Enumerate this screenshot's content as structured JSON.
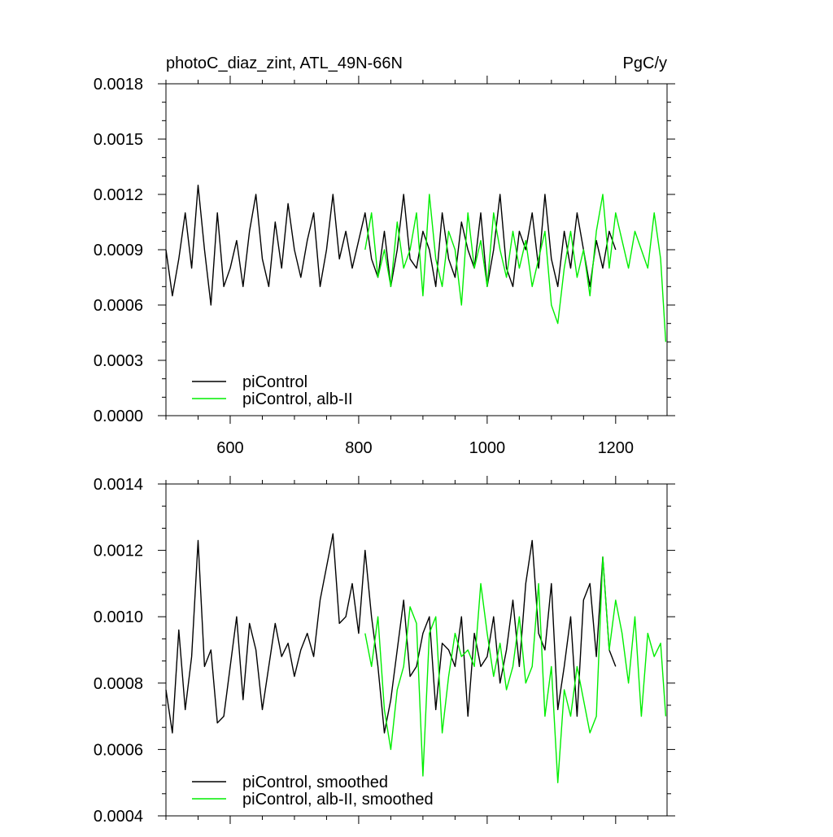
{
  "chart_data": [
    {
      "type": "line",
      "title": "photoC_diaz_zint, ATL_49N-66N",
      "units": "PgC/y",
      "xlim": [
        500,
        1280
      ],
      "ylim": [
        0,
        0.0018
      ],
      "x_ticks": [
        600,
        800,
        1000,
        1200
      ],
      "x_tick_labels": [
        "600",
        "800",
        "1000",
        "1200"
      ],
      "y_ticks": [
        0,
        0.0003,
        0.0006,
        0.0009,
        0.0012,
        0.0015,
        0.0018
      ],
      "y_tick_labels": [
        "0.0000",
        "0.0003",
        "0.0006",
        "0.0009",
        "0.0012",
        "0.0015",
        "0.0018"
      ],
      "grid": false,
      "legend": "bottom-left",
      "series": [
        {
          "name": "piControl",
          "color": "#000000",
          "x": [
            500,
            510,
            520,
            530,
            540,
            550,
            560,
            570,
            580,
            590,
            600,
            610,
            620,
            630,
            640,
            650,
            660,
            670,
            680,
            690,
            700,
            710,
            720,
            730,
            740,
            750,
            760,
            770,
            780,
            790,
            800,
            810,
            820,
            830,
            840,
            850,
            860,
            870,
            880,
            890,
            900,
            910,
            920,
            930,
            940,
            950,
            960,
            970,
            980,
            990,
            1000,
            1010,
            1020,
            1030,
            1040,
            1050,
            1060,
            1070,
            1080,
            1090,
            1100,
            1110,
            1120,
            1130,
            1140,
            1150,
            1160,
            1170,
            1180,
            1190,
            1200
          ],
          "values": [
            0.0009,
            0.00065,
            0.00085,
            0.0011,
            0.0008,
            0.00125,
            0.0009,
            0.0006,
            0.0011,
            0.0007,
            0.0008,
            0.00095,
            0.0007,
            0.001,
            0.0012,
            0.00085,
            0.0007,
            0.00105,
            0.0008,
            0.00115,
            0.0009,
            0.00075,
            0.00095,
            0.0011,
            0.0007,
            0.0009,
            0.0012,
            0.00085,
            0.001,
            0.0008,
            0.00095,
            0.0011,
            0.00085,
            0.00075,
            0.001,
            0.0007,
            0.0009,
            0.0012,
            0.00085,
            0.0008,
            0.001,
            0.0009,
            0.0007,
            0.0011,
            0.00085,
            0.00075,
            0.00105,
            0.0009,
            0.0008,
            0.0011,
            0.0007,
            0.0009,
            0.0012,
            0.0008,
            0.0007,
            0.001,
            0.0009,
            0.0011,
            0.0008,
            0.0012,
            0.00085,
            0.0007,
            0.001,
            0.0008,
            0.0011,
            0.0009,
            0.0007,
            0.00095,
            0.0008,
            0.001,
            0.0009
          ]
        },
        {
          "name": "piControl, alb-II",
          "color": "#00ee00",
          "x": [
            810,
            820,
            830,
            840,
            850,
            860,
            870,
            880,
            890,
            900,
            910,
            920,
            930,
            940,
            950,
            960,
            970,
            980,
            990,
            1000,
            1010,
            1020,
            1030,
            1040,
            1050,
            1060,
            1070,
            1080,
            1090,
            1100,
            1110,
            1120,
            1130,
            1140,
            1150,
            1160,
            1170,
            1180,
            1190,
            1200,
            1210,
            1220,
            1230,
            1240,
            1250,
            1260,
            1270,
            1278
          ],
          "values": [
            0.0009,
            0.0011,
            0.00075,
            0.0009,
            0.0007,
            0.00105,
            0.0008,
            0.0009,
            0.0011,
            0.00065,
            0.0012,
            0.00085,
            0.0007,
            0.001,
            0.0009,
            0.0006,
            0.0011,
            0.0008,
            0.00095,
            0.0007,
            0.0011,
            0.0009,
            0.00075,
            0.001,
            0.0008,
            0.00095,
            0.0007,
            0.00085,
            0.001,
            0.0006,
            0.0005,
            0.0008,
            0.001,
            0.00075,
            0.0009,
            0.00065,
            0.001,
            0.0012,
            0.0008,
            0.0011,
            0.00095,
            0.0008,
            0.001,
            0.0009,
            0.0008,
            0.0011,
            0.00085,
            0.0004
          ]
        }
      ]
    },
    {
      "type": "line",
      "xlim": [
        500,
        1280
      ],
      "ylim": [
        0.0004,
        0.0014
      ],
      "x_ticks": [
        600,
        800,
        1000,
        1200
      ],
      "y_ticks": [
        0.0004,
        0.0006,
        0.0008,
        0.001,
        0.0012,
        0.0014
      ],
      "y_tick_labels": [
        "0.0004",
        "0.0006",
        "0.0008",
        "0.0010",
        "0.0012",
        "0.0014"
      ],
      "grid": false,
      "legend": "bottom-left",
      "series": [
        {
          "name": "piControl, smoothed",
          "color": "#000000",
          "x": [
            500,
            510,
            520,
            530,
            540,
            550,
            560,
            570,
            580,
            590,
            600,
            610,
            620,
            630,
            640,
            650,
            660,
            670,
            680,
            690,
            700,
            710,
            720,
            730,
            740,
            750,
            760,
            770,
            780,
            790,
            800,
            810,
            820,
            830,
            840,
            850,
            860,
            870,
            880,
            890,
            900,
            910,
            920,
            930,
            940,
            950,
            960,
            970,
            980,
            990,
            1000,
            1010,
            1020,
            1030,
            1040,
            1050,
            1060,
            1070,
            1080,
            1090,
            1100,
            1110,
            1120,
            1130,
            1140,
            1150,
            1160,
            1170,
            1180,
            1190,
            1200
          ],
          "values": [
            0.00078,
            0.00065,
            0.00096,
            0.00072,
            0.00088,
            0.00123,
            0.00085,
            0.0009,
            0.00068,
            0.0007,
            0.00085,
            0.001,
            0.00075,
            0.00098,
            0.0009,
            0.00072,
            0.00085,
            0.00098,
            0.00088,
            0.00092,
            0.00082,
            0.0009,
            0.00095,
            0.00088,
            0.00105,
            0.00115,
            0.00125,
            0.00098,
            0.001,
            0.0011,
            0.00095,
            0.0012,
            0.001,
            0.00085,
            0.00065,
            0.00075,
            0.0009,
            0.00105,
            0.00082,
            0.00085,
            0.00095,
            0.001,
            0.00072,
            0.00092,
            0.0009,
            0.00085,
            0.001,
            0.0007,
            0.00095,
            0.00085,
            0.00088,
            0.001,
            0.0008,
            0.0009,
            0.00105,
            0.00085,
            0.0011,
            0.00123,
            0.00095,
            0.0009,
            0.0011,
            0.00072,
            0.00085,
            0.001,
            0.0007,
            0.00105,
            0.0011,
            0.00088,
            0.00118,
            0.0009,
            0.00085
          ]
        },
        {
          "name": "piControl, alb-II, smoothed",
          "color": "#00ee00",
          "x": [
            810,
            820,
            830,
            840,
            850,
            860,
            870,
            880,
            890,
            900,
            910,
            920,
            930,
            940,
            950,
            960,
            970,
            980,
            990,
            1000,
            1010,
            1020,
            1030,
            1040,
            1050,
            1060,
            1070,
            1080,
            1090,
            1100,
            1110,
            1120,
            1130,
            1140,
            1150,
            1160,
            1170,
            1180,
            1190,
            1200,
            1210,
            1220,
            1230,
            1240,
            1250,
            1260,
            1270,
            1278
          ],
          "values": [
            0.00095,
            0.00085,
            0.001,
            0.00072,
            0.0006,
            0.00078,
            0.00085,
            0.00103,
            0.00098,
            0.00052,
            0.00095,
            0.001,
            0.00065,
            0.00082,
            0.00095,
            0.00088,
            0.0009,
            0.00085,
            0.0011,
            0.00095,
            0.00082,
            0.00092,
            0.00078,
            0.00085,
            0.001,
            0.0008,
            0.00085,
            0.0011,
            0.0007,
            0.00085,
            0.0005,
            0.00078,
            0.0007,
            0.00085,
            0.00075,
            0.00065,
            0.0007,
            0.00118,
            0.0009,
            0.00105,
            0.00095,
            0.0008,
            0.001,
            0.0007,
            0.00095,
            0.00088,
            0.00092,
            0.0007
          ]
        }
      ]
    }
  ]
}
